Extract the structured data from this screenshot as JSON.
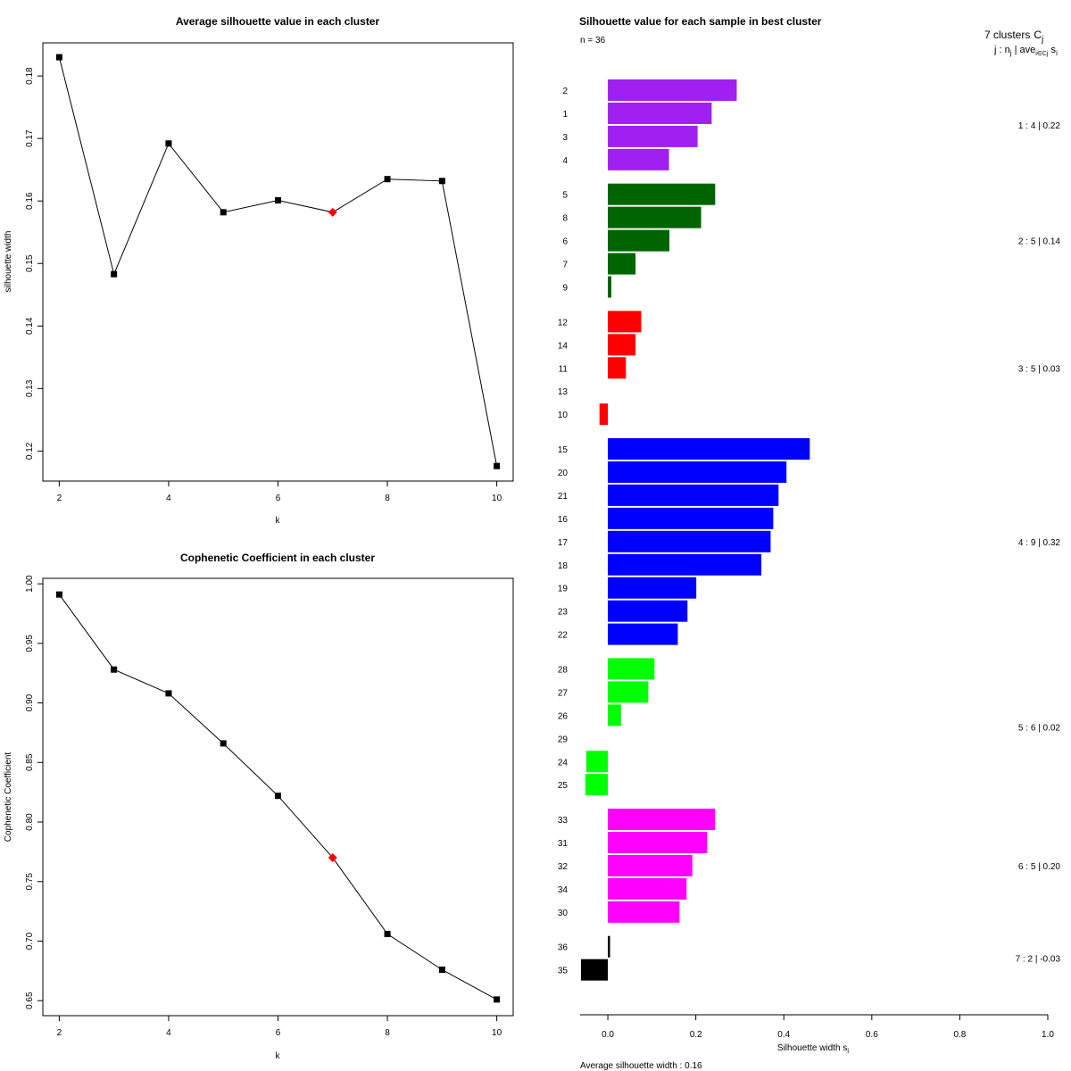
{
  "chart_data": [
    {
      "type": "line",
      "title": "Average silhouette value in each cluster",
      "xlabel": "k",
      "ylabel": "silhouette width",
      "x": [
        2,
        3,
        4,
        5,
        6,
        7,
        8,
        9,
        10
      ],
      "y": [
        0.183,
        0.1483,
        0.1692,
        0.1582,
        0.1601,
        0.1582,
        0.1635,
        0.1632,
        0.1176
      ],
      "highlight_x": 7,
      "highlight_color": "#ff0000",
      "xlim": [
        1.7,
        10.3
      ],
      "ylim": [
        0.1152,
        0.1853
      ],
      "xticks": [
        2,
        4,
        6,
        8,
        10
      ],
      "yticks": [
        "0.12",
        "0.13",
        "0.14",
        "0.15",
        "0.16",
        "0.17",
        "0.18"
      ]
    },
    {
      "type": "line",
      "title": "Cophenetic Coefficient in each cluster",
      "xlabel": "k",
      "ylabel": "Cophenetic Coefficient",
      "x": [
        2,
        3,
        4,
        5,
        6,
        7,
        8,
        9,
        10
      ],
      "y": [
        0.991,
        0.928,
        0.908,
        0.866,
        0.822,
        0.77,
        0.706,
        0.676,
        0.651
      ],
      "highlight_x": 7,
      "highlight_color": "#ff0000",
      "xlim": [
        1.7,
        10.3
      ],
      "ylim": [
        0.6374,
        1.0046
      ],
      "xticks": [
        2,
        4,
        6,
        8,
        10
      ],
      "yticks": [
        "0.65",
        "0.70",
        "0.75",
        "0.80",
        "0.85",
        "0.90",
        "0.95",
        "1.00"
      ]
    },
    {
      "type": "bar",
      "orientation": "horizontal",
      "title": "Silhouette value for each sample in best cluster",
      "n_label": "n = 36",
      "header": "7 clusters",
      "header_c": "C",
      "header_c_sub": "j",
      "subheader": "j : n",
      "subheader_sub": "j",
      "subheader_rest": " | ave",
      "subheader_rest_sub": "i∈Cj",
      "subheader_end": " s",
      "subheader_end_sub": "i",
      "xlabel": "Silhouette width s",
      "xlabel_sub": "i",
      "xlim": [
        -0.063,
        1.0
      ],
      "xticks": [
        "0.0",
        "0.2",
        "0.4",
        "0.6",
        "0.8",
        "1.0"
      ],
      "xtick_values": [
        0,
        0.2,
        0.4,
        0.6,
        0.8,
        1.0
      ],
      "average_label": "Average silhouette width :  0.16",
      "clusters": [
        {
          "color": "#a020f0",
          "summary": "1 :  4  |  0.22",
          "samples": [
            {
              "id": "2",
              "value": 0.293
            },
            {
              "id": "1",
              "value": 0.236
            },
            {
              "id": "3",
              "value": 0.204
            },
            {
              "id": "4",
              "value": 0.139
            }
          ]
        },
        {
          "color": "#006400",
          "summary": "2 :  5  |  0.14",
          "samples": [
            {
              "id": "5",
              "value": 0.244
            },
            {
              "id": "8",
              "value": 0.212
            },
            {
              "id": "6",
              "value": 0.14
            },
            {
              "id": "7",
              "value": 0.063
            },
            {
              "id": "9",
              "value": 0.008
            }
          ]
        },
        {
          "color": "#ff0000",
          "summary": "3 :  5  |  0.03",
          "samples": [
            {
              "id": "12",
              "value": 0.076
            },
            {
              "id": "14",
              "value": 0.063
            },
            {
              "id": "11",
              "value": 0.041
            },
            {
              "id": "13",
              "value": 0.0
            },
            {
              "id": "10",
              "value": -0.019
            }
          ]
        },
        {
          "color": "#0000ff",
          "summary": "4 :  9  |  0.32",
          "samples": [
            {
              "id": "15",
              "value": 0.459
            },
            {
              "id": "20",
              "value": 0.406
            },
            {
              "id": "21",
              "value": 0.388
            },
            {
              "id": "16",
              "value": 0.376
            },
            {
              "id": "17",
              "value": 0.37
            },
            {
              "id": "18",
              "value": 0.349
            },
            {
              "id": "19",
              "value": 0.201
            },
            {
              "id": "23",
              "value": 0.181
            },
            {
              "id": "22",
              "value": 0.159
            }
          ]
        },
        {
          "color": "#00ff00",
          "summary": "5 :  6  |  0.02",
          "samples": [
            {
              "id": "28",
              "value": 0.106
            },
            {
              "id": "27",
              "value": 0.092
            },
            {
              "id": "26",
              "value": 0.03
            },
            {
              "id": "29",
              "value": 0.0
            },
            {
              "id": "24",
              "value": -0.049
            },
            {
              "id": "25",
              "value": -0.051
            }
          ]
        },
        {
          "color": "#ff00ff",
          "summary": "6 :  5  |  0.20",
          "samples": [
            {
              "id": "33",
              "value": 0.244
            },
            {
              "id": "31",
              "value": 0.226
            },
            {
              "id": "32",
              "value": 0.192
            },
            {
              "id": "34",
              "value": 0.179
            },
            {
              "id": "30",
              "value": 0.163
            }
          ]
        },
        {
          "color": "#000000",
          "summary": "7 :  2  |  -0.03",
          "samples": [
            {
              "id": "36",
              "value": 0.005
            },
            {
              "id": "35",
              "value": -0.061
            }
          ]
        }
      ]
    }
  ]
}
